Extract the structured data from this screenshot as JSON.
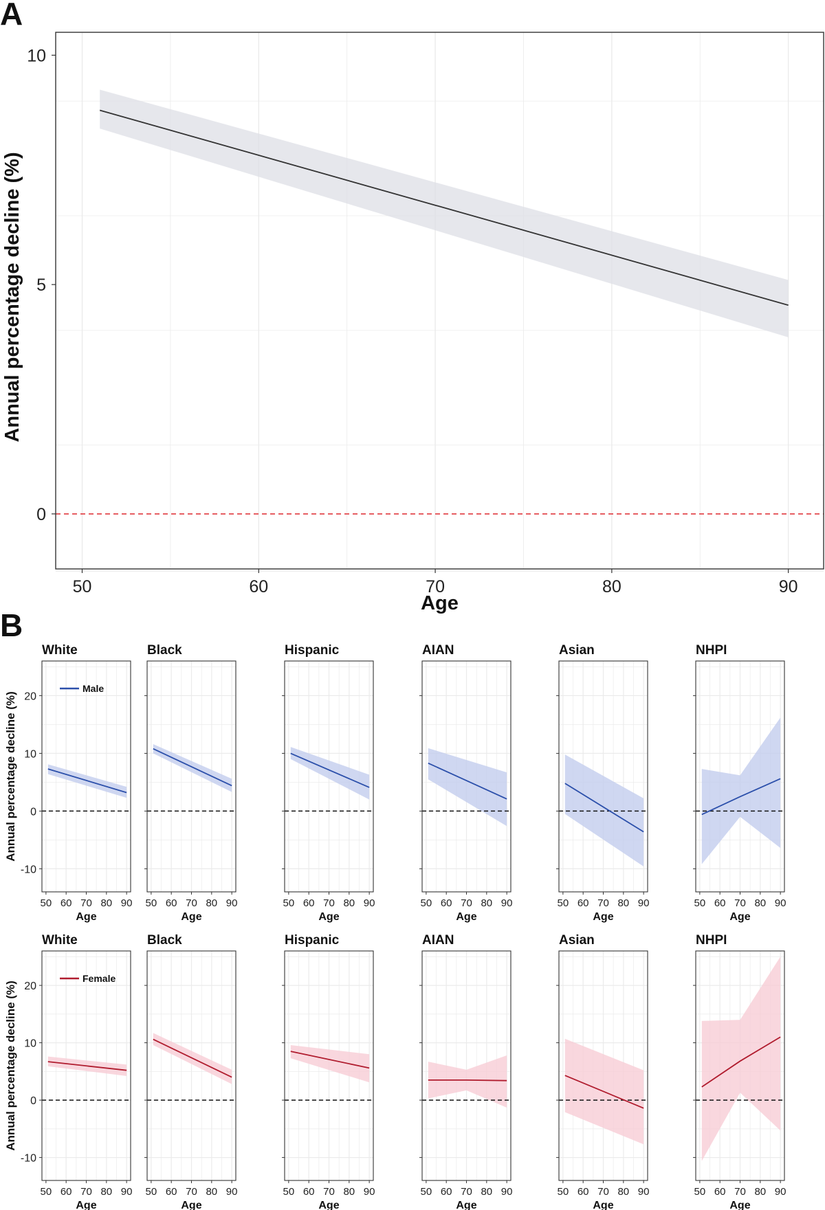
{
  "chart_data": [
    {
      "panel_label": "A",
      "type": "line",
      "xlabel": "Age",
      "ylabel": "Annual percentage decline (%)",
      "xlim": [
        48.5,
        92
      ],
      "ylim": [
        -1.2,
        10.5
      ],
      "xticks": [
        50,
        60,
        70,
        80,
        90
      ],
      "yticks": [
        0,
        5,
        10
      ],
      "grid": true,
      "reference_line": 0,
      "series": [
        {
          "x": [
            51,
            90
          ],
          "y": [
            8.8,
            4.55
          ],
          "lower": [
            8.4,
            3.85
          ],
          "upper": [
            9.25,
            5.1
          ]
        }
      ]
    },
    {
      "panel_label": "B",
      "type": "line",
      "xlabel": "Age",
      "ylabel": "Annual percentage decline (%)",
      "xlim": [
        48,
        92
      ],
      "ylim": [
        -14,
        26
      ],
      "xticks": [
        50,
        60,
        70,
        80,
        90
      ],
      "yticks": [
        -10,
        0,
        10,
        20
      ],
      "grid": true,
      "reference_line": 0,
      "legend_position": "top-left",
      "rows": [
        {
          "legend": "Male",
          "color": "#2b4faa",
          "band_color": "#c3cdee",
          "panels": [
            {
              "title": "White",
              "x": [
                51,
                90
              ],
              "y": [
                7.3,
                3.2
              ],
              "lower": [
                6.4,
                2.3
              ],
              "upper": [
                8.1,
                4.2
              ]
            },
            {
              "title": "Black",
              "x": [
                51,
                90
              ],
              "y": [
                10.8,
                4.4
              ],
              "lower": [
                10.0,
                3.3
              ],
              "upper": [
                11.6,
                5.6
              ]
            },
            {
              "title": "Hispanic",
              "x": [
                51,
                90
              ],
              "y": [
                10.0,
                4.1
              ],
              "lower": [
                9.0,
                2.0
              ],
              "upper": [
                11.1,
                6.3
              ]
            },
            {
              "title": "AIAN",
              "x": [
                51,
                90
              ],
              "y": [
                8.3,
                2.1
              ],
              "lower": [
                5.5,
                -2.6
              ],
              "upper": [
                10.9,
                6.7
              ]
            },
            {
              "title": "Asian",
              "x": [
                51,
                90
              ],
              "y": [
                4.8,
                -3.6
              ],
              "lower": [
                -0.5,
                -9.6
              ],
              "upper": [
                9.8,
                2.2
              ]
            },
            {
              "title": "NHPI",
              "x": [
                51,
                70,
                90
              ],
              "y": [
                -0.6,
                2.5,
                5.6
              ],
              "lower": [
                -9.2,
                -1.0,
                -6.4
              ],
              "upper": [
                7.3,
                6.2,
                16.2
              ]
            }
          ]
        },
        {
          "legend": "Female",
          "color": "#b01c2e",
          "band_color": "#f7cdd6",
          "panels": [
            {
              "title": "White",
              "x": [
                51,
                90
              ],
              "y": [
                6.7,
                5.2
              ],
              "lower": [
                5.9,
                4.2
              ],
              "upper": [
                7.6,
                6.2
              ]
            },
            {
              "title": "Black",
              "x": [
                51,
                90
              ],
              "y": [
                10.6,
                4.0
              ],
              "lower": [
                9.6,
                2.8
              ],
              "upper": [
                11.7,
                5.3
              ]
            },
            {
              "title": "Hispanic",
              "x": [
                51,
                90
              ],
              "y": [
                8.5,
                5.6
              ],
              "lower": [
                7.3,
                3.1
              ],
              "upper": [
                9.6,
                8.0
              ]
            },
            {
              "title": "AIAN",
              "x": [
                51,
                70,
                90
              ],
              "y": [
                3.5,
                3.5,
                3.4
              ],
              "lower": [
                0.3,
                1.7,
                -1.3
              ],
              "upper": [
                6.7,
                5.3,
                7.8
              ]
            },
            {
              "title": "Asian",
              "x": [
                51,
                90
              ],
              "y": [
                4.3,
                -1.4
              ],
              "lower": [
                -2.1,
                -7.7
              ],
              "upper": [
                10.7,
                5.2
              ]
            },
            {
              "title": "NHPI",
              "x": [
                51,
                70,
                90
              ],
              "y": [
                2.3,
                6.8,
                11.0
              ],
              "lower": [
                -10.6,
                1.3,
                -5.3
              ],
              "upper": [
                13.8,
                14.0,
                25.0
              ]
            }
          ]
        }
      ]
    }
  ]
}
